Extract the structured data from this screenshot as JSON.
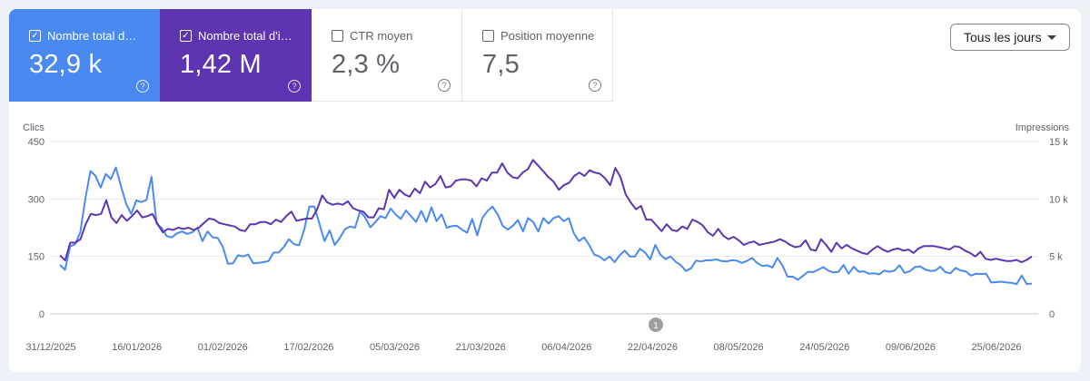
{
  "metrics": [
    {
      "label": "Nombre total de c...",
      "value": "32,9 k",
      "checked": true,
      "color": "#4a8af0"
    },
    {
      "label": "Nombre total d'im...",
      "value": "1,42 M",
      "checked": true,
      "color": "#5e35b1"
    },
    {
      "label": "CTR moyen",
      "value": "2,3 %",
      "checked": false
    },
    {
      "label": "Position moyenne",
      "value": "7,5",
      "checked": false
    }
  ],
  "help_glyph": "?",
  "check_glyph": "✓",
  "date_range": {
    "label": "Tous les jours"
  },
  "annotation": {
    "label": "1"
  },
  "chart_data": {
    "type": "line",
    "left_axis_label": "Clics",
    "right_axis_label": "Impressions",
    "left_ticks": [
      "450",
      "300",
      "150",
      "0"
    ],
    "right_ticks": [
      "15 k",
      "10 k",
      "5 k",
      "0"
    ],
    "left_range": [
      0,
      450
    ],
    "right_range": [
      0,
      15000
    ],
    "x_labels": [
      "31/12/2025",
      "16/01/2026",
      "01/02/2026",
      "17/02/2026",
      "05/03/2026",
      "21/03/2026",
      "06/04/2026",
      "22/04/2026",
      "08/05/2026",
      "24/05/2026",
      "09/06/2026",
      "25/06/2026"
    ],
    "grid": true,
    "series": [
      {
        "name": "Clics",
        "axis": "left",
        "color": "#4a8af0",
        "values": [
          128,
          115,
          176,
          182,
          213,
          302,
          373,
          360,
          330,
          365,
          352,
          382,
          333,
          288,
          261,
          296,
          292,
          297,
          358,
          236,
          224,
          203,
          200,
          210,
          215,
          209,
          213,
          225,
          190,
          215,
          200,
          198,
          175,
          131,
          132,
          153,
          150,
          155,
          132,
          133,
          135,
          138,
          160,
          160,
          175,
          195,
          182,
          179,
          220,
          280,
          280,
          235,
          190,
          218,
          180,
          198,
          221,
          228,
          225,
          268,
          251,
          226,
          240,
          255,
          250,
          275,
          259,
          248,
          270,
          255,
          240,
          269,
          240,
          278,
          242,
          260,
          225,
          229,
          230,
          220,
          212,
          248,
          205,
          250,
          268,
          280,
          260,
          230,
          220,
          230,
          245,
          215,
          250,
          240,
          215,
          250,
          236,
          250,
          255,
          242,
          250,
          210,
          190,
          200,
          180,
          155,
          150,
          140,
          150,
          135,
          153,
          165,
          150,
          150,
          170,
          160,
          142,
          180,
          155,
          143,
          150,
          136,
          127,
          112,
          119,
          139,
          137,
          140,
          140,
          142,
          138,
          137,
          140,
          139,
          133,
          138,
          146,
          133,
          125,
          127,
          121,
          146,
          126,
          97,
          97,
          89,
          99,
          110,
          109,
          115,
          122,
          113,
          108,
          110,
          128,
          105,
          123,
          110,
          111,
          105,
          106,
          103,
          113,
          110,
          113,
          127,
          107,
          111,
          122,
          124,
          116,
          112,
          113,
          123,
          109,
          106,
          120,
          113,
          111,
          100,
          105,
          104,
          105,
          82,
          83,
          84,
          82,
          81,
          78,
          100,
          78,
          79
        ]
      },
      {
        "name": "Impressions",
        "axis": "right",
        "color": "#5e35b1",
        "values": [
          5100,
          4650,
          6200,
          6200,
          6500,
          7800,
          8700,
          8600,
          8700,
          9900,
          8400,
          7900,
          8600,
          8100,
          8500,
          9000,
          8400,
          8500,
          8700,
          7800,
          7100,
          7400,
          7300,
          7500,
          7400,
          7500,
          7300,
          7500,
          7900,
          8300,
          8200,
          7900,
          7800,
          7700,
          7600,
          7300,
          7200,
          7800,
          7800,
          8000,
          8000,
          7800,
          8200,
          8000,
          8500,
          8900,
          8100,
          8200,
          8300,
          8300,
          9100,
          10300,
          9700,
          9500,
          9600,
          9500,
          9800,
          9200,
          9000,
          8900,
          8400,
          8400,
          9200,
          9100,
          10800,
          10100,
          10800,
          10400,
          10200,
          10900,
          10500,
          11500,
          11000,
          11300,
          12000,
          11000,
          11100,
          11600,
          11700,
          11700,
          11600,
          11100,
          11800,
          11600,
          12300,
          12300,
          13100,
          12300,
          11900,
          11800,
          12300,
          12600,
          13400,
          12900,
          12400,
          11900,
          11500,
          10800,
          11200,
          11400,
          12000,
          12300,
          12000,
          12500,
          12300,
          12200,
          11800,
          11200,
          12700,
          11900,
          10400,
          9700,
          9100,
          9400,
          8200,
          8200,
          7700,
          7200,
          7800,
          7300,
          7200,
          7600,
          7400,
          8200,
          8000,
          7700,
          7100,
          6800,
          7400,
          6800,
          6500,
          6700,
          6400,
          6000,
          6200,
          6300,
          6000,
          6100,
          6200,
          6300,
          6500,
          6300,
          6000,
          5800,
          5900,
          6400,
          5600,
          5500,
          6500,
          6000,
          5400,
          6200,
          5700,
          6000,
          5700,
          5500,
          5300,
          5200,
          5600,
          5900,
          5600,
          5400,
          5600,
          5700,
          5500,
          5600,
          5300,
          5700,
          5900,
          5900,
          5900,
          5800,
          5700,
          5600,
          5900,
          5800,
          5500,
          5300,
          5000,
          5400,
          4800,
          4700,
          4800,
          4700,
          4600,
          4600,
          4700,
          4500,
          4700,
          5000
        ]
      }
    ]
  }
}
